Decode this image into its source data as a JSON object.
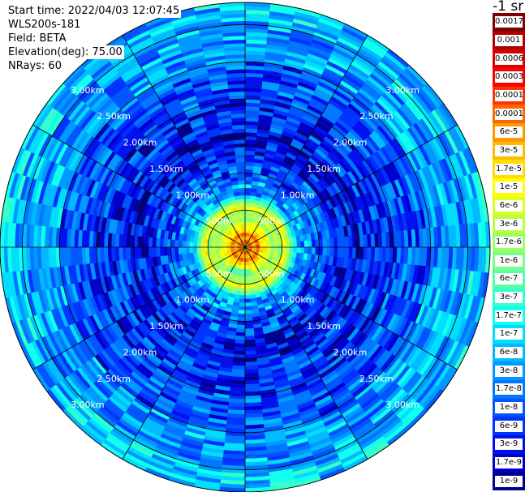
{
  "header": {
    "start_time": "Start time: 2022/04/03 12:07:45",
    "instrument": "WLS200s-181",
    "field": "Field: BETA",
    "elevation": "Elevation(deg): 75.00",
    "nrays": "NRays: 60"
  },
  "colorbar": {
    "title": "-1 sr",
    "levels": [
      {
        "label": "0.0017",
        "color": "#7f0000"
      },
      {
        "label": "0.001",
        "color": "#b00000"
      },
      {
        "label": "0.0006",
        "color": "#d60000"
      },
      {
        "label": "0.0003",
        "color": "#ff0000"
      },
      {
        "label": "0.00017",
        "color": "#ff3300"
      },
      {
        "label": "0.0001",
        "color": "#ff6600"
      },
      {
        "label": "6e-5",
        "color": "#ff9900"
      },
      {
        "label": "3e-5",
        "color": "#ffbb00"
      },
      {
        "label": "1.7e-5",
        "color": "#ffdd00"
      },
      {
        "label": "1e-5",
        "color": "#ffff00"
      },
      {
        "label": "6e-6",
        "color": "#ddff22"
      },
      {
        "label": "3e-6",
        "color": "#bbff44"
      },
      {
        "label": "1.7e-6",
        "color": "#99ff66"
      },
      {
        "label": "1e-6",
        "color": "#77ff88"
      },
      {
        "label": "6e-7",
        "color": "#55ffaa"
      },
      {
        "label": "3e-7",
        "color": "#33ffcc"
      },
      {
        "label": "1.7e-7",
        "color": "#11ffee"
      },
      {
        "label": "1e-7",
        "color": "#00ddff"
      },
      {
        "label": "6e-8",
        "color": "#00bbff"
      },
      {
        "label": "3e-8",
        "color": "#0099ff"
      },
      {
        "label": "1.7e-8",
        "color": "#0077ff"
      },
      {
        "label": "1e-8",
        "color": "#0055ff"
      },
      {
        "label": "6e-9",
        "color": "#0033ff"
      },
      {
        "label": "3e-9",
        "color": "#0011ee"
      },
      {
        "label": "1.7e-9",
        "color": "#0000cc"
      },
      {
        "label": "1e-9",
        "color": "#00008b"
      }
    ]
  },
  "chart_data": {
    "type": "heatmap",
    "projection": "polar PPI (plan position indicator)",
    "max_range_m": 3300,
    "range_rings": [
      {
        "range_m": 500,
        "label": "500m"
      },
      {
        "range_m": 1000,
        "label": "1.00km"
      },
      {
        "range_m": 1500,
        "label": "1.50km"
      },
      {
        "range_m": 2000,
        "label": "2.00km"
      },
      {
        "range_m": 2500,
        "label": "2.50km"
      },
      {
        "range_m": 3000,
        "label": "3.00km"
      }
    ],
    "radial_spokes_deg": [
      0,
      30,
      60,
      90,
      120,
      150,
      180,
      210,
      240,
      270,
      300,
      330
    ],
    "n_rays": 60,
    "gate_length_m": 50,
    "profile_by_range": [
      {
        "range_m": 0,
        "level": "1.7e-5"
      },
      {
        "range_m": 50,
        "level": "0.0001"
      },
      {
        "range_m": 100,
        "level": "3e-5"
      },
      {
        "range_m": 150,
        "level": "0.0001"
      },
      {
        "range_m": 200,
        "level": "1.7e-5"
      },
      {
        "range_m": 250,
        "level": "1e-5"
      },
      {
        "range_m": 300,
        "level": "6e-6"
      },
      {
        "range_m": 350,
        "level": "1.7e-6"
      },
      {
        "range_m": 400,
        "level": "3e-6"
      },
      {
        "range_m": 450,
        "level": "1.7e-6"
      },
      {
        "range_m": 500,
        "level": "1e-5"
      },
      {
        "range_m": 550,
        "level": "3e-6"
      },
      {
        "range_m": 600,
        "level": "6e-7"
      },
      {
        "range_m": 650,
        "level": "1e-7"
      },
      {
        "range_m": 700,
        "level": "3e-8"
      },
      {
        "range_m": 900,
        "level": "1e-8"
      },
      {
        "range_m": 1200,
        "level": "3e-9"
      },
      {
        "range_m": 1600,
        "level": "6e-9"
      },
      {
        "range_m": 2000,
        "level": "1e-8"
      },
      {
        "range_m": 2500,
        "level": "3e-8"
      },
      {
        "range_m": 3000,
        "level": "6e-8"
      },
      {
        "range_m": 3300,
        "level": "6e-8"
      }
    ]
  }
}
